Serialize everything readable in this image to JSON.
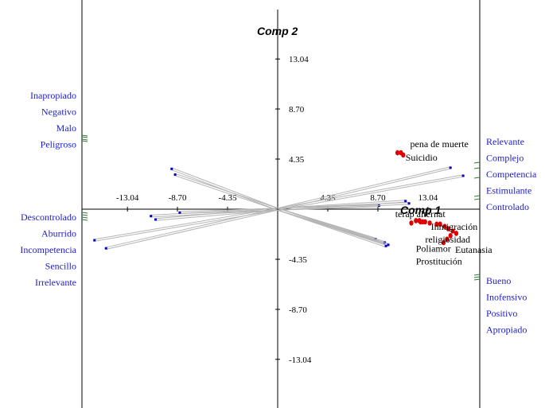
{
  "chart_data": {
    "type": "scatter",
    "subtype": "biplot",
    "xlabel": "Comp 1",
    "ylabel": "Comp 2",
    "xlim": [
      -17.4,
      17.4
    ],
    "ylim": [
      -17.4,
      17.4
    ],
    "x_ticks": [
      -13.04,
      -8.7,
      -4.35,
      4.35,
      8.7,
      13.04
    ],
    "x_tick_labels": [
      "-13.04",
      "-8.70",
      "-4.35",
      "4.35",
      "8.70",
      "13.04"
    ],
    "y_ticks": [
      13.04,
      8.7,
      4.35,
      -4.35,
      -8.7,
      -13.04
    ],
    "y_tick_labels": [
      "13.04",
      "8.70",
      "4.35",
      "-4.35",
      "-8.70",
      "-13.04"
    ],
    "colors": {
      "vector": "#b4b4b4",
      "vector_tip": "#0000c8",
      "point": "#e00000",
      "scale_label": "#1c1cc8",
      "scale_tick": "#2e7d32",
      "axis": "#000000",
      "text": "#000000"
    },
    "vectors": [
      {
        "x": -9.2,
        "y": 3.5
      },
      {
        "x": -8.9,
        "y": 3.0
      },
      {
        "x": -11.0,
        "y": -0.6
      },
      {
        "x": -10.6,
        "y": -0.9
      },
      {
        "x": -8.5,
        "y": -0.3
      },
      {
        "x": -15.9,
        "y": -2.7
      },
      {
        "x": -14.9,
        "y": -3.4
      },
      {
        "x": 15.0,
        "y": 3.6
      },
      {
        "x": 16.1,
        "y": 2.9
      },
      {
        "x": 11.1,
        "y": 0.7
      },
      {
        "x": 8.8,
        "y": 0.3
      },
      {
        "x": 11.4,
        "y": 0.5
      },
      {
        "x": 8.5,
        "y": -2.6
      },
      {
        "x": 9.3,
        "y": -2.9
      },
      {
        "x": 9.6,
        "y": -3.1
      },
      {
        "x": 9.4,
        "y": -3.2
      }
    ],
    "points": [
      {
        "x": 10.4,
        "y": 4.9
      },
      {
        "x": 10.7,
        "y": 4.9
      },
      {
        "x": 10.9,
        "y": 4.7
      },
      {
        "x": 11.6,
        "y": -1.2
      },
      {
        "x": 12.0,
        "y": -1.0
      },
      {
        "x": 12.3,
        "y": -1.0
      },
      {
        "x": 12.4,
        "y": -1.1
      },
      {
        "x": 12.6,
        "y": -1.1
      },
      {
        "x": 12.8,
        "y": -1.1
      },
      {
        "x": 13.2,
        "y": -1.2
      },
      {
        "x": 13.8,
        "y": -1.3
      },
      {
        "x": 14.1,
        "y": -1.3
      },
      {
        "x": 14.5,
        "y": -1.5
      },
      {
        "x": 14.8,
        "y": -1.7
      },
      {
        "x": 15.2,
        "y": -1.9
      },
      {
        "x": 15.5,
        "y": -2.1
      },
      {
        "x": 15.0,
        "y": -2.3
      },
      {
        "x": 14.7,
        "y": -2.6
      },
      {
        "x": 14.4,
        "y": -2.9
      }
    ],
    "point_labels": [
      {
        "text": "pena de muerte",
        "x": 11.5,
        "y": 5.4
      },
      {
        "text": "Suicidio",
        "x": 11.1,
        "y": 4.2
      },
      {
        "text": "terap alternat",
        "x": 10.2,
        "y": -0.7
      },
      {
        "text": "Inmigración",
        "x": 13.3,
        "y": -1.8
      },
      {
        "text": "religiosidad",
        "x": 12.8,
        "y": -2.9
      },
      {
        "text": "Poliamor",
        "x": 12.0,
        "y": -3.7
      },
      {
        "text": "Eutanasia",
        "x": 15.4,
        "y": -3.8
      },
      {
        "text": "Prostitución",
        "x": 12.0,
        "y": -4.8
      }
    ],
    "left_scale_groups": [
      [
        "Inapropiado",
        "Negativo",
        "Malo",
        "Peligroso"
      ],
      [
        "Descontrolado",
        "Aburrido",
        "Incompetencia",
        "Sencillo",
        "Irrelevante"
      ]
    ],
    "right_scale_groups": [
      [
        "Relevante",
        "Complejo",
        "Competencia",
        "Estimulante",
        "Controlado"
      ],
      [
        "Bueno",
        "Inofensivo",
        "Positivo",
        "Apropiado"
      ]
    ]
  }
}
